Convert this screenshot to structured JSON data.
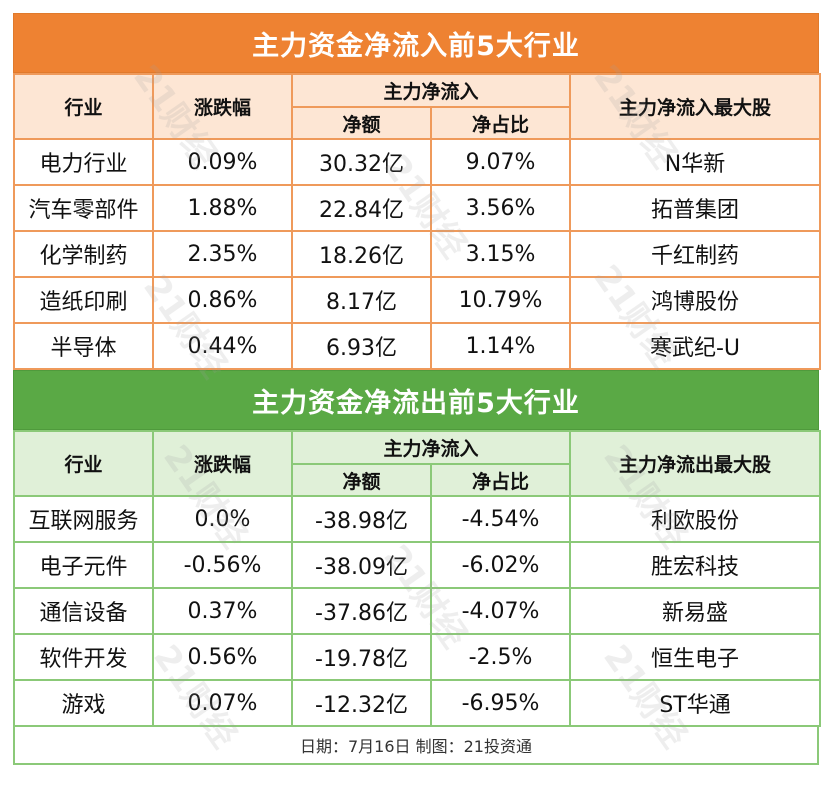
{
  "inflow": {
    "title": "主力资金净流入前5大行业",
    "headers": {
      "industry": "行业",
      "change": "涨跌幅",
      "main_flow": "主力净流入",
      "net_amount": "净额",
      "net_ratio": "净占比",
      "top_stock": "主力净流入最大股"
    },
    "rows": [
      {
        "industry": "电力行业",
        "change": "0.09%",
        "amount": "30.32亿",
        "ratio": "9.07%",
        "stock": "N华新"
      },
      {
        "industry": "汽车零部件",
        "change": "1.88%",
        "amount": "22.84亿",
        "ratio": "3.56%",
        "stock": "拓普集团"
      },
      {
        "industry": "化学制药",
        "change": "2.35%",
        "amount": "18.26亿",
        "ratio": "3.15%",
        "stock": "千红制药"
      },
      {
        "industry": "造纸印刷",
        "change": "0.86%",
        "amount": "8.17亿",
        "ratio": "10.79%",
        "stock": "鸿博股份"
      },
      {
        "industry": "半导体",
        "change": "0.44%",
        "amount": "6.93亿",
        "ratio": "1.14%",
        "stock": "寒武纪-U"
      }
    ]
  },
  "outflow": {
    "title": "主力资金净流出前5大行业",
    "headers": {
      "industry": "行业",
      "change": "涨跌幅",
      "main_flow": "主力净流入",
      "net_amount": "净额",
      "net_ratio": "净占比",
      "top_stock": "主力净流出最大股"
    },
    "rows": [
      {
        "industry": "互联网服务",
        "change": "0.0%",
        "amount": "-38.98亿",
        "ratio": "-4.54%",
        "stock": "利欧股份"
      },
      {
        "industry": "电子元件",
        "change": "-0.56%",
        "amount": "-38.09亿",
        "ratio": "-6.02%",
        "stock": "胜宏科技"
      },
      {
        "industry": "通信设备",
        "change": "0.37%",
        "amount": "-37.86亿",
        "ratio": "-4.07%",
        "stock": "新易盛"
      },
      {
        "industry": "软件开发",
        "change": "0.56%",
        "amount": "-19.78亿",
        "ratio": "-2.5%",
        "stock": "恒生电子"
      },
      {
        "industry": "游戏",
        "change": "0.07%",
        "amount": "-12.32亿",
        "ratio": "-6.95%",
        "stock": "ST华通"
      }
    ]
  },
  "footer": "日期：7月16日 制图：21投资通",
  "watermark": "21财经",
  "colors": {
    "inflow_accent": "#ee8232",
    "outflow_accent": "#5aa945",
    "inflow_header_bg": "#fde6d4",
    "outflow_header_bg": "#e0f0d8"
  }
}
